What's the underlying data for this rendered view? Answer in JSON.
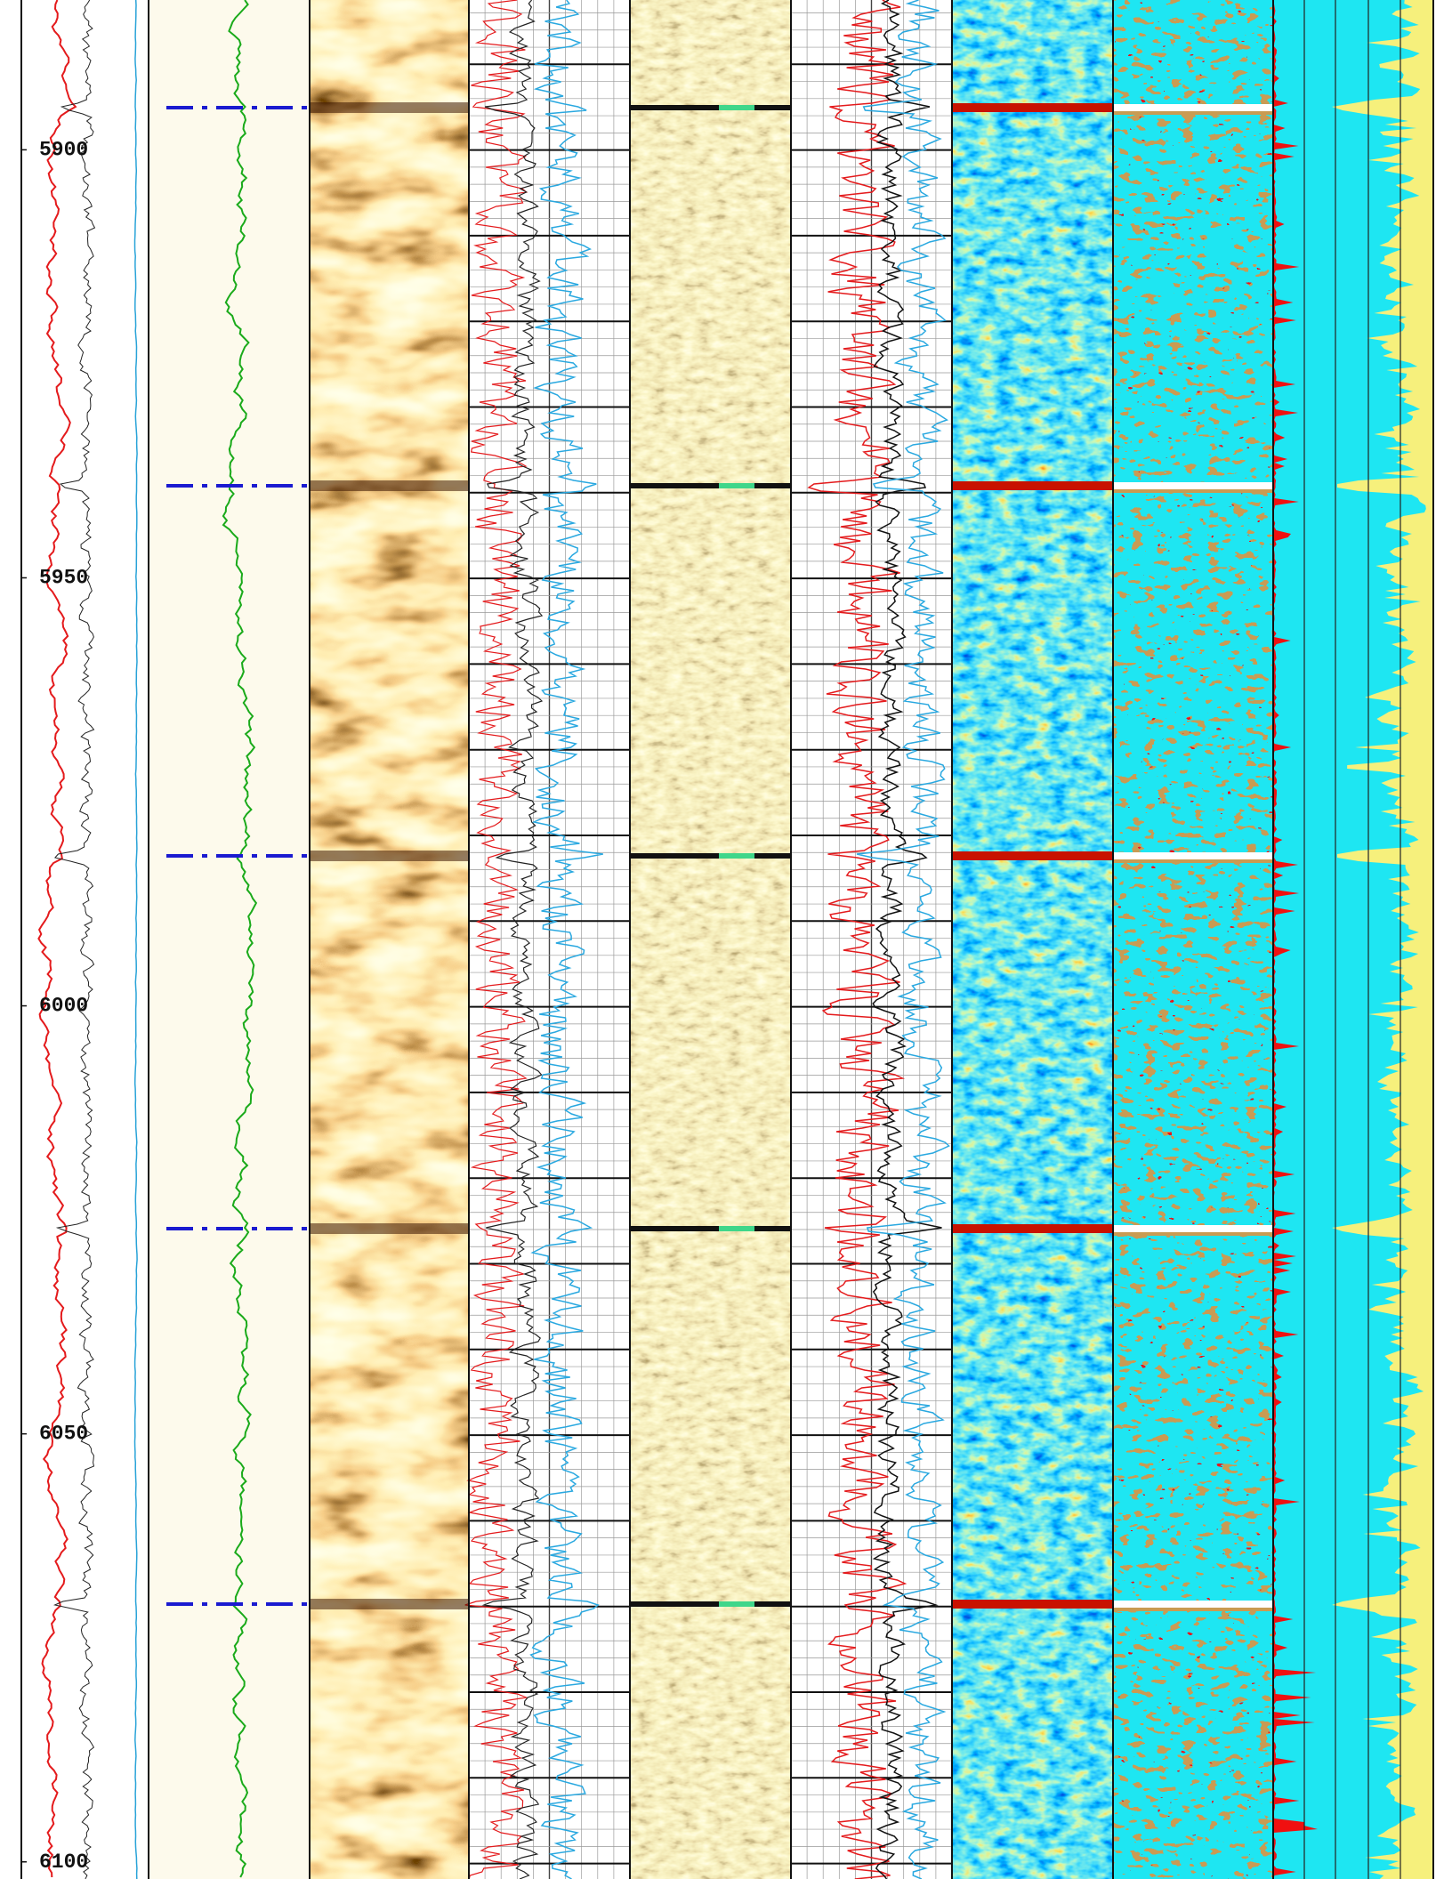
{
  "chart_data": {
    "type": "well-log",
    "ylim": [
      5882.5,
      6102
    ],
    "y_inverted": true,
    "yticks": [
      5900,
      5950,
      6000,
      6050,
      6100
    ]
  }
}
